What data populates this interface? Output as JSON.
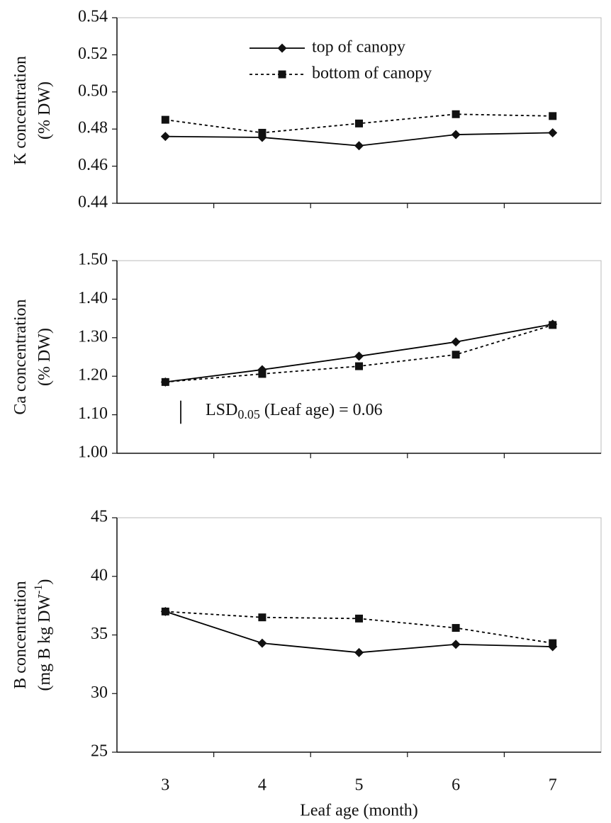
{
  "chart_data": [
    {
      "type": "line",
      "ylabel": [
        "K concentration",
        "(% DW)"
      ],
      "categories": [
        3,
        4,
        5,
        6,
        7
      ],
      "ylim": [
        0.44,
        0.54
      ],
      "yticks": [
        0.44,
        0.46,
        0.48,
        {
          "value": 0.5,
          "label": "0.50"
        },
        0.52,
        0.54
      ],
      "legend": "top-center",
      "series": [
        {
          "name": "top of canopy",
          "color": "#000000",
          "marker": "diamond",
          "dashed": false,
          "values": [
            0.476,
            0.4755,
            0.471,
            0.477,
            0.478
          ]
        },
        {
          "name": "bottom of canopy",
          "color": "#000000",
          "marker": "square",
          "dashed": true,
          "values": [
            0.485,
            0.478,
            0.483,
            0.488,
            0.487
          ]
        }
      ]
    },
    {
      "type": "line",
      "ylabel": [
        "Ca concentration",
        "(% DW)"
      ],
      "categories": [
        3,
        4,
        5,
        6,
        7
      ],
      "ylim": [
        1.0,
        1.5
      ],
      "yticks": [
        {
          "value": 1.0,
          "label": "1.00"
        },
        {
          "value": 1.1,
          "label": "1.10"
        },
        {
          "value": 1.2,
          "label": "1.20"
        },
        {
          "value": 1.3,
          "label": "1.30"
        },
        {
          "value": 1.4,
          "label": "1.40"
        },
        {
          "value": 1.5,
          "label": "1.50"
        }
      ],
      "annotation": {
        "text": "LSD",
        "subscript": "0.05",
        "rest": " (Leaf age) = 0.06"
      },
      "series": [
        {
          "color": "#000000",
          "marker": "diamond",
          "dashed": false,
          "values": [
            1.185,
            1.217,
            1.252,
            1.289,
            1.335
          ]
        },
        {
          "color": "#000000",
          "marker": "square",
          "dashed": true,
          "values": [
            1.185,
            1.206,
            1.226,
            1.256,
            1.333
          ]
        }
      ]
    },
    {
      "type": "line",
      "ylabel": [
        "B concentration",
        "(mg B kg DW"
      ],
      "ylabel_superscript": "-1",
      "ylabel_suffix": ")",
      "xlabel": "Leaf age (month)",
      "categories": [
        3,
        4,
        5,
        6,
        7
      ],
      "ylim": [
        25,
        45
      ],
      "yticks": [
        25,
        30,
        35,
        40,
        45
      ],
      "series": [
        {
          "color": "#000000",
          "marker": "diamond",
          "dashed": false,
          "values": [
            37,
            34.3,
            33.5,
            34.2,
            34.0
          ]
        },
        {
          "color": "#000000",
          "marker": "square",
          "dashed": true,
          "values": [
            37,
            36.5,
            36.4,
            35.6,
            34.3
          ]
        }
      ]
    }
  ]
}
